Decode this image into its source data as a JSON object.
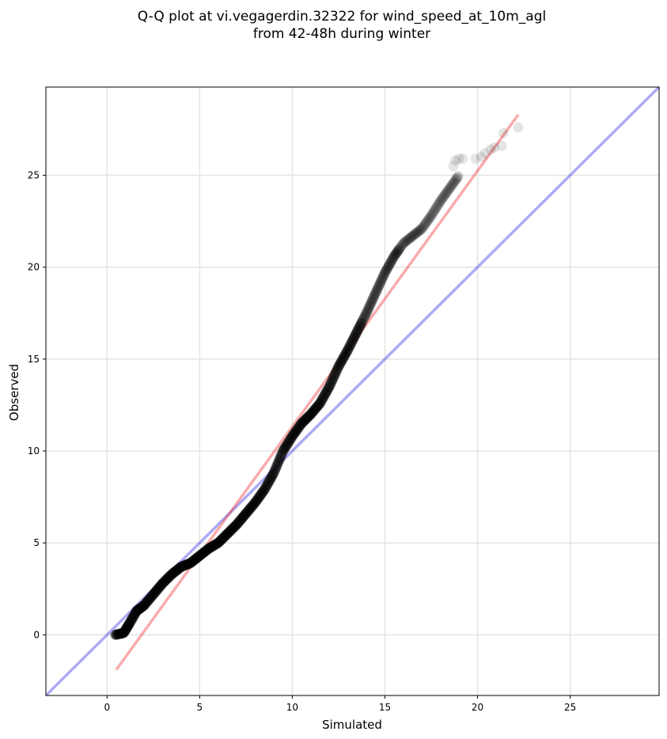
{
  "chart_data": {
    "type": "scatter",
    "title_lines": [
      "Q-Q plot at vi.vegagerdin.32322 for wind_speed_at_10m_agl",
      "from 42-48h during winter"
    ],
    "xlabel": "Simulated",
    "ylabel": "Observed",
    "xlim": [
      -3.3,
      29.8
    ],
    "ylim": [
      -3.3,
      29.8
    ],
    "xticks": [
      0,
      5,
      10,
      15,
      20,
      25
    ],
    "yticks": [
      0,
      5,
      10,
      15,
      20,
      25
    ],
    "grid": true,
    "colors": {
      "points": "#000000",
      "identity_line": "#0000dd",
      "fit_line": "#ee2222"
    },
    "quantile_curve": [
      [
        0.45,
        0.0
      ],
      [
        0.9,
        0.1
      ],
      [
        1.2,
        0.6
      ],
      [
        1.6,
        1.3
      ],
      [
        2.0,
        1.6
      ],
      [
        2.5,
        2.2
      ],
      [
        3.0,
        2.8
      ],
      [
        3.5,
        3.3
      ],
      [
        4.0,
        3.7
      ],
      [
        4.5,
        3.9
      ],
      [
        5.0,
        4.3
      ],
      [
        5.5,
        4.7
      ],
      [
        6.0,
        5.0
      ],
      [
        6.5,
        5.5
      ],
      [
        7.0,
        6.0
      ],
      [
        7.5,
        6.6
      ],
      [
        8.0,
        7.2
      ],
      [
        8.5,
        7.9
      ],
      [
        9.0,
        8.8
      ],
      [
        9.5,
        10.0
      ],
      [
        10.0,
        10.8
      ],
      [
        10.5,
        11.5
      ],
      [
        11.0,
        12.0
      ],
      [
        11.5,
        12.6
      ],
      [
        12.0,
        13.5
      ],
      [
        12.5,
        14.6
      ],
      [
        13.0,
        15.5
      ],
      [
        13.5,
        16.5
      ],
      [
        14.0,
        17.5
      ],
      [
        14.5,
        18.6
      ],
      [
        15.0,
        19.7
      ],
      [
        15.5,
        20.6
      ],
      [
        16.0,
        21.3
      ],
      [
        16.5,
        21.7
      ],
      [
        17.0,
        22.1
      ],
      [
        17.5,
        22.8
      ],
      [
        18.0,
        23.6
      ],
      [
        18.5,
        24.3
      ],
      [
        19.0,
        25.0
      ]
    ],
    "tail_points": [
      [
        18.7,
        25.5
      ],
      [
        18.8,
        25.8
      ],
      [
        19.0,
        25.9
      ],
      [
        19.2,
        25.9
      ],
      [
        19.9,
        25.9
      ],
      [
        20.2,
        26.0
      ],
      [
        20.4,
        26.2
      ],
      [
        20.7,
        26.4
      ],
      [
        20.9,
        26.5
      ],
      [
        21.3,
        26.6
      ],
      [
        21.4,
        27.3
      ],
      [
        22.2,
        27.6
      ]
    ],
    "identity_line": {
      "x": [
        -3.3,
        29.8
      ],
      "y": [
        -3.3,
        29.8
      ]
    },
    "fit_line": {
      "x": [
        0.5,
        22.2
      ],
      "y": [
        -1.9,
        28.3
      ]
    }
  }
}
